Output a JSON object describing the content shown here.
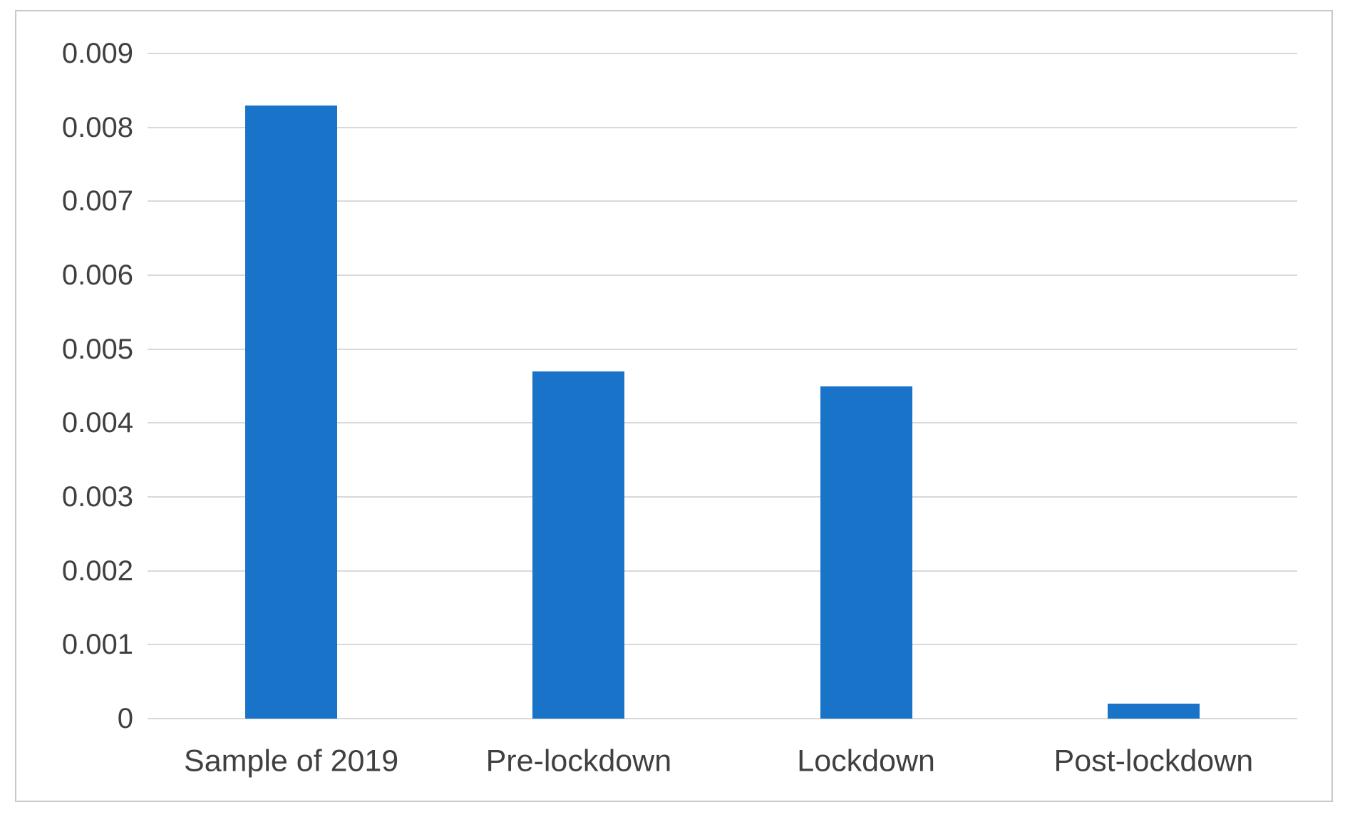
{
  "chart_data": {
    "type": "bar",
    "title": "",
    "xlabel": "",
    "ylabel": "",
    "categories": [
      "Sample of 2019",
      "Pre-lockdown",
      "Lockdown",
      "Post-lockdown"
    ],
    "values": [
      0.0083,
      0.0047,
      0.0045,
      0.0002
    ],
    "ylim": [
      0,
      0.009
    ],
    "ytick_step": 0.001,
    "ytick_labels": [
      "0",
      "0.001",
      "0.002",
      "0.003",
      "0.004",
      "0.005",
      "0.006",
      "0.007",
      "0.008",
      "0.009"
    ],
    "grid": true,
    "legend": false,
    "legend_position": "none",
    "bar_color": "#1973c8",
    "gridline_color": "#d9d9d9",
    "axis_label_color": "#404040",
    "frame_border_color": "#c9c9c9",
    "background_color": "#ffffff"
  }
}
